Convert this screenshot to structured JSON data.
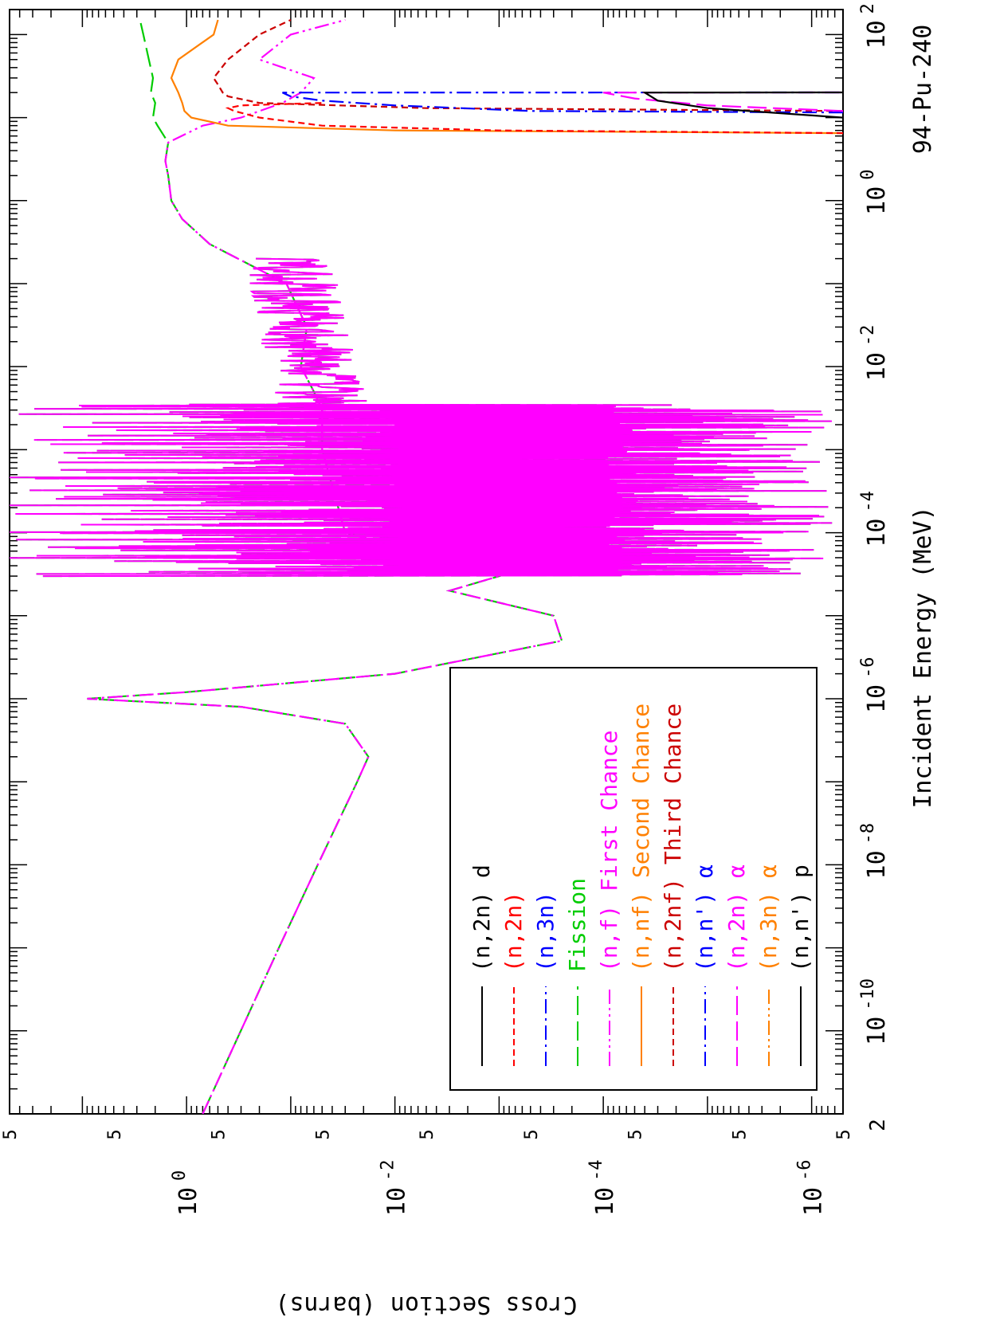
{
  "chart_data": {
    "type": "line",
    "title": "94-Pu-240",
    "xlabel": "Incident Energy (MeV)",
    "ylabel": "Cross Section (barns)",
    "x_scale": "log",
    "y_scale": "log",
    "xlim": [
      1e-11,
      200
    ],
    "ylim": [
      5e-07,
      50
    ],
    "x_ticks": [
      {
        "base": "10",
        "exp": "-10",
        "value": 1e-10
      },
      {
        "base": "10",
        "exp": "-8",
        "value": 1e-08
      },
      {
        "base": "10",
        "exp": "-6",
        "value": 1e-06
      },
      {
        "base": "10",
        "exp": "-4",
        "value": 0.0001
      },
      {
        "base": "10",
        "exp": "-2",
        "value": 0.01
      },
      {
        "base": "10",
        "exp": "0",
        "value": 1
      },
      {
        "base": "10",
        "exp": "2",
        "value": 100
      }
    ],
    "x_minor_label": "2",
    "y_ticks": [
      {
        "base": "10",
        "exp": "0",
        "value": 1
      },
      {
        "base": "10",
        "exp": "-2",
        "value": 0.01
      },
      {
        "base": "10",
        "exp": "-4",
        "value": 0.0001
      },
      {
        "base": "10",
        "exp": "-6",
        "value": 1e-06
      }
    ],
    "y_minor_label": "5",
    "legend_position": "lower-left",
    "legend": [
      {
        "label": "(n,2n) d",
        "parts": [
          {
            "t": "(n,2n) d",
            "c": "#000000"
          }
        ],
        "color": "#000000",
        "dash": "solid"
      },
      {
        "label": "(n,2n)",
        "parts": [
          {
            "t": "(n,2n)",
            "c": "#ff0000"
          }
        ],
        "color": "#ff0000",
        "dash": "short-dash"
      },
      {
        "label": "(n,3n)",
        "parts": [
          {
            "t": "(n,3n)",
            "c": "#0000ff"
          }
        ],
        "color": "#0000ff",
        "dash": "dash-dot"
      },
      {
        "label": "Fission",
        "parts": [
          {
            "t": "Fission",
            "c": "#00cc00"
          }
        ],
        "color": "#00cc00",
        "dash": "long-dash"
      },
      {
        "label": "(n,f) First Chance",
        "parts": [
          {
            "t": "(n,f) First Chance",
            "c": "#ff00ff"
          }
        ],
        "color": "#ff00ff",
        "dash": "dash-dot-dot"
      },
      {
        "label": "(n,nf) Second Chance",
        "parts": [
          {
            "t": "(n,nf) Second Chance",
            "c": "#ff8000"
          }
        ],
        "color": "#ff8000",
        "dash": "solid"
      },
      {
        "label": "(n,2nf) Third Chance",
        "parts": [
          {
            "t": "(n,2nf) Third Chance",
            "c": "#cc0000"
          }
        ],
        "color": "#cc0000",
        "dash": "short-dash"
      },
      {
        "label": "(n,n') α",
        "parts": [
          {
            "t": "(n,n')",
            "c": "#0000ff"
          },
          {
            "t": " α",
            "c": "#0000ff"
          }
        ],
        "color": "#0000ff",
        "dash": "dash-dot"
      },
      {
        "label": "(n,2n) α",
        "parts": [
          {
            "t": "(n,2n)",
            "c": "#ff00ff"
          },
          {
            "t": " α",
            "c": "#ff00ff"
          }
        ],
        "color": "#ff00ff",
        "dash": "long-dash"
      },
      {
        "label": "(n,3n) α",
        "parts": [
          {
            "t": "(n,3n)",
            "c": "#ff8000"
          },
          {
            "t": " α",
            "c": "#ff8000"
          }
        ],
        "color": "#ff8000",
        "dash": "dash-dot-dot"
      },
      {
        "label": "(n,n') p",
        "parts": [
          {
            "t": "(n,n') p",
            "c": "#000000"
          }
        ],
        "color": "#000000",
        "dash": "solid"
      }
    ],
    "series": [
      {
        "name": "Fission",
        "color": "#00cc00",
        "dash": "long-dash",
        "x": [
          1e-11,
          1e-09,
          1e-08,
          1e-07,
          2e-07,
          5e-07,
          8e-07,
          1e-06,
          1.2e-06,
          2e-06,
          5e-06,
          1e-05,
          2e-05,
          3e-05,
          0.0001,
          0.001,
          0.003,
          0.005,
          0.01,
          0.03,
          0.1,
          0.3,
          0.6,
          1,
          2,
          3,
          5,
          8,
          10,
          15,
          20,
          30,
          50,
          100,
          150
        ],
        "y": [
          0.7,
          0.13,
          0.055,
          0.023,
          0.018,
          0.03,
          0.3,
          9,
          1.0,
          0.01,
          0.00025,
          0.0003,
          0.003,
          0.001,
          0.03,
          0.05,
          0.05,
          0.06,
          0.08,
          0.07,
          0.11,
          0.6,
          1.1,
          1.4,
          1.5,
          1.6,
          1.5,
          1.9,
          2.1,
          2.0,
          2.2,
          2.1,
          2.3,
          2.6,
          2.8
        ]
      },
      {
        "name": "(n,f) First Chance",
        "color": "#ff00ff",
        "dash": "dash-dot-dot",
        "x": [
          1e-11,
          1e-09,
          1e-08,
          1e-07,
          2e-07,
          5e-07,
          8e-07,
          1e-06,
          1.2e-06,
          2e-06,
          5e-06,
          1e-05,
          2e-05,
          3e-05,
          0.0001,
          0.001,
          0.003,
          0.005,
          0.01,
          0.03,
          0.1,
          0.3,
          0.6,
          1,
          2,
          3,
          5,
          8,
          10,
          15,
          20,
          30,
          50,
          100,
          150
        ],
        "y": [
          0.7,
          0.13,
          0.055,
          0.023,
          0.018,
          0.03,
          0.3,
          9,
          1.0,
          0.01,
          0.00025,
          0.0003,
          0.003,
          0.001,
          0.03,
          0.05,
          0.05,
          0.06,
          0.08,
          0.07,
          0.11,
          0.6,
          1.1,
          1.4,
          1.5,
          1.6,
          1.5,
          0.7,
          0.3,
          0.12,
          0.08,
          0.06,
          0.2,
          0.1,
          0.03
        ]
      },
      {
        "name": "(n,nf) Second Chance",
        "color": "#ff8000",
        "dash": "solid",
        "x": [
          6.5,
          7,
          8,
          10,
          12,
          15,
          20,
          30,
          50,
          100,
          150
        ],
        "y": [
          5e-07,
          0.01,
          0.4,
          0.9,
          1.05,
          1.1,
          1.2,
          1.4,
          1.2,
          0.55,
          0.5
        ]
      },
      {
        "name": "(n,2nf) Third Chance",
        "color": "#cc0000",
        "dash": "short-dash",
        "x": [
          12,
          13,
          15,
          18,
          20,
          25,
          30,
          50,
          100,
          150
        ],
        "y": [
          5e-07,
          0.005,
          0.2,
          0.4,
          0.45,
          0.5,
          0.55,
          0.4,
          0.2,
          0.1
        ]
      },
      {
        "name": "(n,2n)",
        "color": "#ff0000",
        "dash": "short-dash",
        "x": [
          6.5,
          7,
          8,
          10,
          12,
          13,
          14,
          15
        ],
        "y": [
          5e-07,
          0.001,
          0.05,
          0.2,
          0.35,
          0.4,
          0.3,
          0.05
        ]
      },
      {
        "name": "(n,3n)",
        "color": "#0000ff",
        "dash": "dash-dot",
        "x": [
          11.5,
          12,
          14,
          16,
          18,
          20,
          20.1
        ],
        "y": [
          5e-07,
          0.0005,
          0.01,
          0.05,
          0.1,
          0.12,
          5e-07
        ]
      },
      {
        "name": "(n,2n) α",
        "color": "#ff00ff",
        "dash": "long-dash",
        "x": [
          12,
          14,
          17,
          20,
          20.1
        ],
        "y": [
          5e-07,
          1e-05,
          5e-05,
          0.0001,
          5e-07
        ]
      },
      {
        "name": "(n,n') p",
        "color": "#000000",
        "dash": "solid",
        "x": [
          10,
          13,
          16,
          20,
          20.1
        ],
        "y": [
          5e-07,
          1e-05,
          3e-05,
          4e-05,
          5e-07
        ]
      }
    ]
  }
}
